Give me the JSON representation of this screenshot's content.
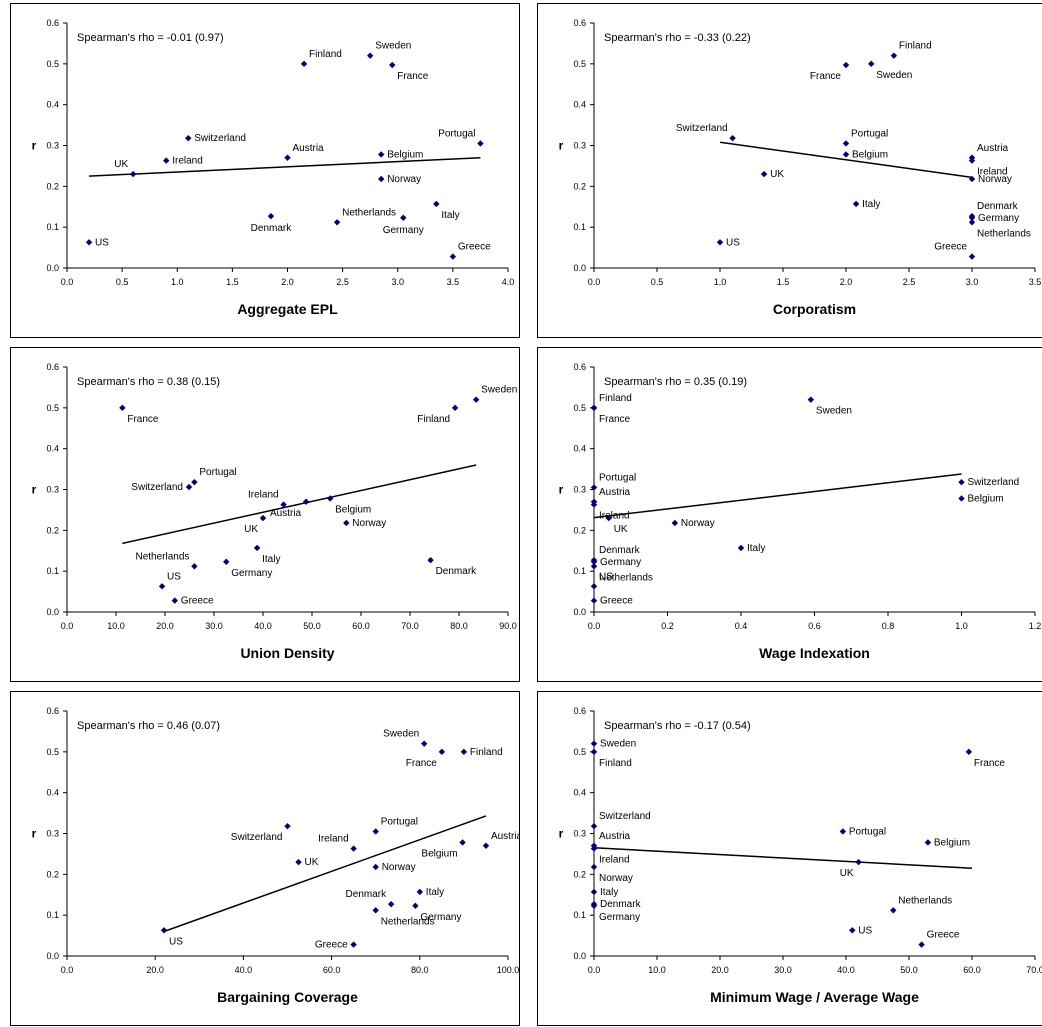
{
  "chart_data": [
    {
      "type": "scatter",
      "annotation": "Spearman's rho = -0.01 (0.97)",
      "xlabel": "Aggregate EPL",
      "ylabel": "r",
      "xlim": [
        0,
        4
      ],
      "xticks": [
        "0.0",
        "0.5",
        "1.0",
        "1.5",
        "2.0",
        "2.5",
        "3.0",
        "3.5",
        "4.0"
      ],
      "ylim": [
        0,
        0.6
      ],
      "yticks": [
        "0.0",
        "0.1",
        "0.2",
        "0.3",
        "0.4",
        "0.5",
        "0.6"
      ],
      "trendline": [
        [
          0.2,
          0.225
        ],
        [
          3.75,
          0.27
        ]
      ],
      "points": [
        {
          "label": "US",
          "x": 0.2,
          "y": 0.063,
          "pos": "right"
        },
        {
          "label": "UK",
          "x": 0.6,
          "y": 0.23,
          "pos": "upleft"
        },
        {
          "label": "Ireland",
          "x": 0.9,
          "y": 0.263,
          "pos": "right"
        },
        {
          "label": "Switzerland",
          "x": 1.1,
          "y": 0.318,
          "pos": "right"
        },
        {
          "label": "Denmark",
          "x": 1.85,
          "y": 0.127,
          "pos": "below"
        },
        {
          "label": "Austria",
          "x": 2.0,
          "y": 0.27,
          "pos": "upright"
        },
        {
          "label": "Finland",
          "x": 2.15,
          "y": 0.5,
          "pos": "upright"
        },
        {
          "label": "Netherlands",
          "x": 2.45,
          "y": 0.112,
          "pos": "upright"
        },
        {
          "label": "Sweden",
          "x": 2.75,
          "y": 0.52,
          "pos": "upright"
        },
        {
          "label": "Belgium",
          "x": 2.85,
          "y": 0.278,
          "pos": "right"
        },
        {
          "label": "Norway",
          "x": 2.85,
          "y": 0.218,
          "pos": "right"
        },
        {
          "label": "France",
          "x": 2.95,
          "y": 0.497,
          "pos": "downright"
        },
        {
          "label": "Germany",
          "x": 3.05,
          "y": 0.123,
          "pos": "below"
        },
        {
          "label": "Italy",
          "x": 3.35,
          "y": 0.157,
          "pos": "downright"
        },
        {
          "label": "Greece",
          "x": 3.5,
          "y": 0.028,
          "pos": "upright"
        },
        {
          "label": "Portugal",
          "x": 3.75,
          "y": 0.305,
          "pos": "upleft"
        }
      ]
    },
    {
      "type": "scatter",
      "annotation": "Spearman's rho = -0.33 (0.22)",
      "xlabel": "Corporatism",
      "ylabel": "r",
      "xlim": [
        0,
        3.5
      ],
      "xticks": [
        "0.0",
        "0.5",
        "1.0",
        "1.5",
        "2.0",
        "2.5",
        "3.0",
        "3.5"
      ],
      "ylim": [
        0,
        0.6
      ],
      "yticks": [
        "0.0",
        "0.1",
        "0.2",
        "0.3",
        "0.4",
        "0.5",
        "0.6"
      ],
      "trendline": [
        [
          1.0,
          0.308
        ],
        [
          3.0,
          0.222
        ]
      ],
      "points": [
        {
          "label": "US",
          "x": 1.0,
          "y": 0.063,
          "pos": "right"
        },
        {
          "label": "Switzerland",
          "x": 1.1,
          "y": 0.318,
          "pos": "upleft"
        },
        {
          "label": "UK",
          "x": 1.35,
          "y": 0.23,
          "pos": "right"
        },
        {
          "label": "France",
          "x": 2.0,
          "y": 0.497,
          "pos": "downleft"
        },
        {
          "label": "Portugal",
          "x": 2.0,
          "y": 0.305,
          "pos": "upright"
        },
        {
          "label": "Belgium",
          "x": 2.0,
          "y": 0.278,
          "pos": "right"
        },
        {
          "label": "Italy",
          "x": 2.08,
          "y": 0.157,
          "pos": "right"
        },
        {
          "label": "Sweden",
          "x": 2.2,
          "y": 0.5,
          "pos": "downright"
        },
        {
          "label": "Finland",
          "x": 2.38,
          "y": 0.52,
          "pos": "upright"
        },
        {
          "label": "Austria",
          "x": 3.0,
          "y": 0.27,
          "pos": "upright"
        },
        {
          "label": "Ireland",
          "x": 3.0,
          "y": 0.263,
          "pos": "downright"
        },
        {
          "label": "Norway",
          "x": 3.0,
          "y": 0.218,
          "pos": "right"
        },
        {
          "label": "Denmark",
          "x": 3.0,
          "y": 0.127,
          "pos": "upright"
        },
        {
          "label": "Germany",
          "x": 3.0,
          "y": 0.123,
          "pos": "right"
        },
        {
          "label": "Netherlands",
          "x": 3.0,
          "y": 0.112,
          "pos": "downright"
        },
        {
          "label": "Greece",
          "x": 3.0,
          "y": 0.028,
          "pos": "upleft"
        }
      ]
    },
    {
      "type": "scatter",
      "annotation": "Spearman's rho = 0.38 (0.15)",
      "xlabel": "Union Density",
      "ylabel": "r",
      "xlim": [
        0,
        90
      ],
      "xticks": [
        "0.0",
        "10.0",
        "20.0",
        "30.0",
        "40.0",
        "50.0",
        "60.0",
        "70.0",
        "80.0",
        "90.0"
      ],
      "ylim": [
        0,
        0.6
      ],
      "yticks": [
        "0.0",
        "0.1",
        "0.2",
        "0.3",
        "0.4",
        "0.5",
        "0.6"
      ],
      "trendline": [
        [
          11.3,
          0.168
        ],
        [
          83.5,
          0.36
        ]
      ],
      "points": [
        {
          "label": "France",
          "x": 11.3,
          "y": 0.5,
          "pos": "downright"
        },
        {
          "label": "US",
          "x": 19.4,
          "y": 0.063,
          "pos": "upright"
        },
        {
          "label": "Greece",
          "x": 22.0,
          "y": 0.028,
          "pos": "right"
        },
        {
          "label": "Switzerland",
          "x": 24.9,
          "y": 0.306,
          "pos": "left"
        },
        {
          "label": "Portugal",
          "x": 26.0,
          "y": 0.318,
          "pos": "upright"
        },
        {
          "label": "Netherlands",
          "x": 26.0,
          "y": 0.112,
          "pos": "upleft"
        },
        {
          "label": "Germany",
          "x": 32.5,
          "y": 0.123,
          "pos": "downright"
        },
        {
          "label": "Italy",
          "x": 38.8,
          "y": 0.157,
          "pos": "downright"
        },
        {
          "label": "UK",
          "x": 40.0,
          "y": 0.23,
          "pos": "downleft"
        },
        {
          "label": "Ireland",
          "x": 44.2,
          "y": 0.263,
          "pos": "upleft"
        },
        {
          "label": "Austria",
          "x": 48.8,
          "y": 0.27,
          "pos": "downleft"
        },
        {
          "label": "Belgium",
          "x": 53.7,
          "y": 0.278,
          "pos": "downright"
        },
        {
          "label": "Norway",
          "x": 57.0,
          "y": 0.218,
          "pos": "right"
        },
        {
          "label": "Denmark",
          "x": 74.2,
          "y": 0.127,
          "pos": "downright"
        },
        {
          "label": "Finland",
          "x": 79.2,
          "y": 0.5,
          "pos": "downleft"
        },
        {
          "label": "Sweden",
          "x": 83.5,
          "y": 0.52,
          "pos": "upright"
        }
      ]
    },
    {
      "type": "scatter",
      "annotation": "Spearman's rho = 0.35 (0.19)",
      "xlabel": "Wage Indexation",
      "ylabel": "r",
      "xlim": [
        0,
        1.2
      ],
      "xticks": [
        "0.0",
        "0.2",
        "0.4",
        "0.6",
        "0.8",
        "1.0",
        "1.2"
      ],
      "ylim": [
        0,
        0.6
      ],
      "yticks": [
        "0.0",
        "0.1",
        "0.2",
        "0.3",
        "0.4",
        "0.5",
        "0.6"
      ],
      "trendline": [
        [
          0.0,
          0.231
        ],
        [
          1.0,
          0.338
        ]
      ],
      "points": [
        {
          "label": "Finland",
          "x": 0.0,
          "y": 0.5,
          "pos": "upright"
        },
        {
          "label": "France",
          "x": 0.0,
          "y": 0.5,
          "pos": "downright"
        },
        {
          "label": "Portugal",
          "x": 0.0,
          "y": 0.305,
          "pos": "upright"
        },
        {
          "label": "Austria",
          "x": 0.0,
          "y": 0.27,
          "pos": "upright"
        },
        {
          "label": "Ireland",
          "x": 0.0,
          "y": 0.263,
          "pos": "downright"
        },
        {
          "label": "Denmark",
          "x": 0.0,
          "y": 0.127,
          "pos": "upright"
        },
        {
          "label": "Germany",
          "x": 0.0,
          "y": 0.123,
          "pos": "right"
        },
        {
          "label": "Netherlands",
          "x": 0.0,
          "y": 0.112,
          "pos": "downright"
        },
        {
          "label": "US",
          "x": 0.0,
          "y": 0.063,
          "pos": "upright"
        },
        {
          "label": "Greece",
          "x": 0.0,
          "y": 0.028,
          "pos": "right"
        },
        {
          "label": "UK",
          "x": 0.04,
          "y": 0.23,
          "pos": "downright"
        },
        {
          "label": "Norway",
          "x": 0.22,
          "y": 0.218,
          "pos": "right"
        },
        {
          "label": "Italy",
          "x": 0.4,
          "y": 0.157,
          "pos": "right"
        },
        {
          "label": "Sweden",
          "x": 0.59,
          "y": 0.52,
          "pos": "downright"
        },
        {
          "label": "Switzerland",
          "x": 1.0,
          "y": 0.318,
          "pos": "right"
        },
        {
          "label": "Belgium",
          "x": 1.0,
          "y": 0.278,
          "pos": "right"
        }
      ]
    },
    {
      "type": "scatter",
      "annotation": "Spearman's rho = 0.46 (0.07)",
      "xlabel": "Bargaining Coverage",
      "ylabel": "r",
      "xlim": [
        0,
        100
      ],
      "xticks": [
        "0.0",
        "20.0",
        "40.0",
        "60.0",
        "80.0",
        "100.0"
      ],
      "ylim": [
        0,
        0.6
      ],
      "yticks": [
        "0.0",
        "0.1",
        "0.2",
        "0.3",
        "0.4",
        "0.5",
        "0.6"
      ],
      "trendline": [
        [
          22.0,
          0.06
        ],
        [
          95.0,
          0.343
        ]
      ],
      "points": [
        {
          "label": "US",
          "x": 22.0,
          "y": 0.063,
          "pos": "downright"
        },
        {
          "label": "Switzerland",
          "x": 50.0,
          "y": 0.318,
          "pos": "downleft"
        },
        {
          "label": "UK",
          "x": 52.5,
          "y": 0.23,
          "pos": "right"
        },
        {
          "label": "Greece",
          "x": 65.0,
          "y": 0.028,
          "pos": "left"
        },
        {
          "label": "Ireland",
          "x": 65.0,
          "y": 0.263,
          "pos": "upleft"
        },
        {
          "label": "Portugal",
          "x": 70.0,
          "y": 0.305,
          "pos": "upright"
        },
        {
          "label": "Norway",
          "x": 70.0,
          "y": 0.218,
          "pos": "right"
        },
        {
          "label": "Netherlands",
          "x": 70.0,
          "y": 0.112,
          "pos": "downright"
        },
        {
          "label": "Denmark",
          "x": 73.5,
          "y": 0.127,
          "pos": "upleft"
        },
        {
          "label": "Germany",
          "x": 79.0,
          "y": 0.123,
          "pos": "downright"
        },
        {
          "label": "Italy",
          "x": 80.0,
          "y": 0.157,
          "pos": "right"
        },
        {
          "label": "Sweden",
          "x": 81.0,
          "y": 0.52,
          "pos": "upleft"
        },
        {
          "label": "France",
          "x": 85.0,
          "y": 0.5,
          "pos": "downleft"
        },
        {
          "label": "Belgium",
          "x": 89.7,
          "y": 0.278,
          "pos": "downleft"
        },
        {
          "label": "Finland",
          "x": 90.0,
          "y": 0.5,
          "pos": "right"
        },
        {
          "label": "Austria",
          "x": 95.0,
          "y": 0.27,
          "pos": "upright"
        }
      ]
    },
    {
      "type": "scatter",
      "annotation": "Spearman's rho = -0.17 (0.54)",
      "xlabel": "Minimum Wage / Average Wage",
      "ylabel": "r",
      "xlim": [
        0,
        70
      ],
      "xticks": [
        "0.0",
        "10.0",
        "20.0",
        "30.0",
        "40.0",
        "50.0",
        "60.0",
        "70.0"
      ],
      "ylim": [
        0,
        0.6
      ],
      "yticks": [
        "0.0",
        "0.1",
        "0.2",
        "0.3",
        "0.4",
        "0.5",
        "0.6"
      ],
      "trendline": [
        [
          0.0,
          0.265
        ],
        [
          60.0,
          0.215
        ]
      ],
      "points": [
        {
          "label": "Sweden",
          "x": 0.0,
          "y": 0.52,
          "pos": "right"
        },
        {
          "label": "Finland",
          "x": 0.0,
          "y": 0.5,
          "pos": "downright"
        },
        {
          "label": "Switzerland",
          "x": 0.0,
          "y": 0.318,
          "pos": "upright"
        },
        {
          "label": "Austria",
          "x": 0.0,
          "y": 0.27,
          "pos": "upright"
        },
        {
          "label": "Ireland",
          "x": 0.0,
          "y": 0.263,
          "pos": "downright"
        },
        {
          "label": "Norway",
          "x": 0.0,
          "y": 0.218,
          "pos": "downright"
        },
        {
          "label": "Italy",
          "x": 0.0,
          "y": 0.157,
          "pos": "right"
        },
        {
          "label": "Denmark",
          "x": 0.0,
          "y": 0.127,
          "pos": "right"
        },
        {
          "label": "Germany",
          "x": 0.0,
          "y": 0.123,
          "pos": "downright"
        },
        {
          "label": "Portugal",
          "x": 39.5,
          "y": 0.305,
          "pos": "right"
        },
        {
          "label": "US",
          "x": 41.0,
          "y": 0.063,
          "pos": "right"
        },
        {
          "label": "UK",
          "x": 42.0,
          "y": 0.23,
          "pos": "downleft"
        },
        {
          "label": "Netherlands",
          "x": 47.5,
          "y": 0.112,
          "pos": "upright"
        },
        {
          "label": "Greece",
          "x": 52.0,
          "y": 0.028,
          "pos": "upright"
        },
        {
          "label": "Belgium",
          "x": 53.0,
          "y": 0.278,
          "pos": "right"
        },
        {
          "label": "France",
          "x": 59.5,
          "y": 0.5,
          "pos": "downright"
        }
      ]
    }
  ],
  "colors": {
    "marker": "#00007f",
    "trendline": "#000000",
    "frame": "#000000"
  }
}
